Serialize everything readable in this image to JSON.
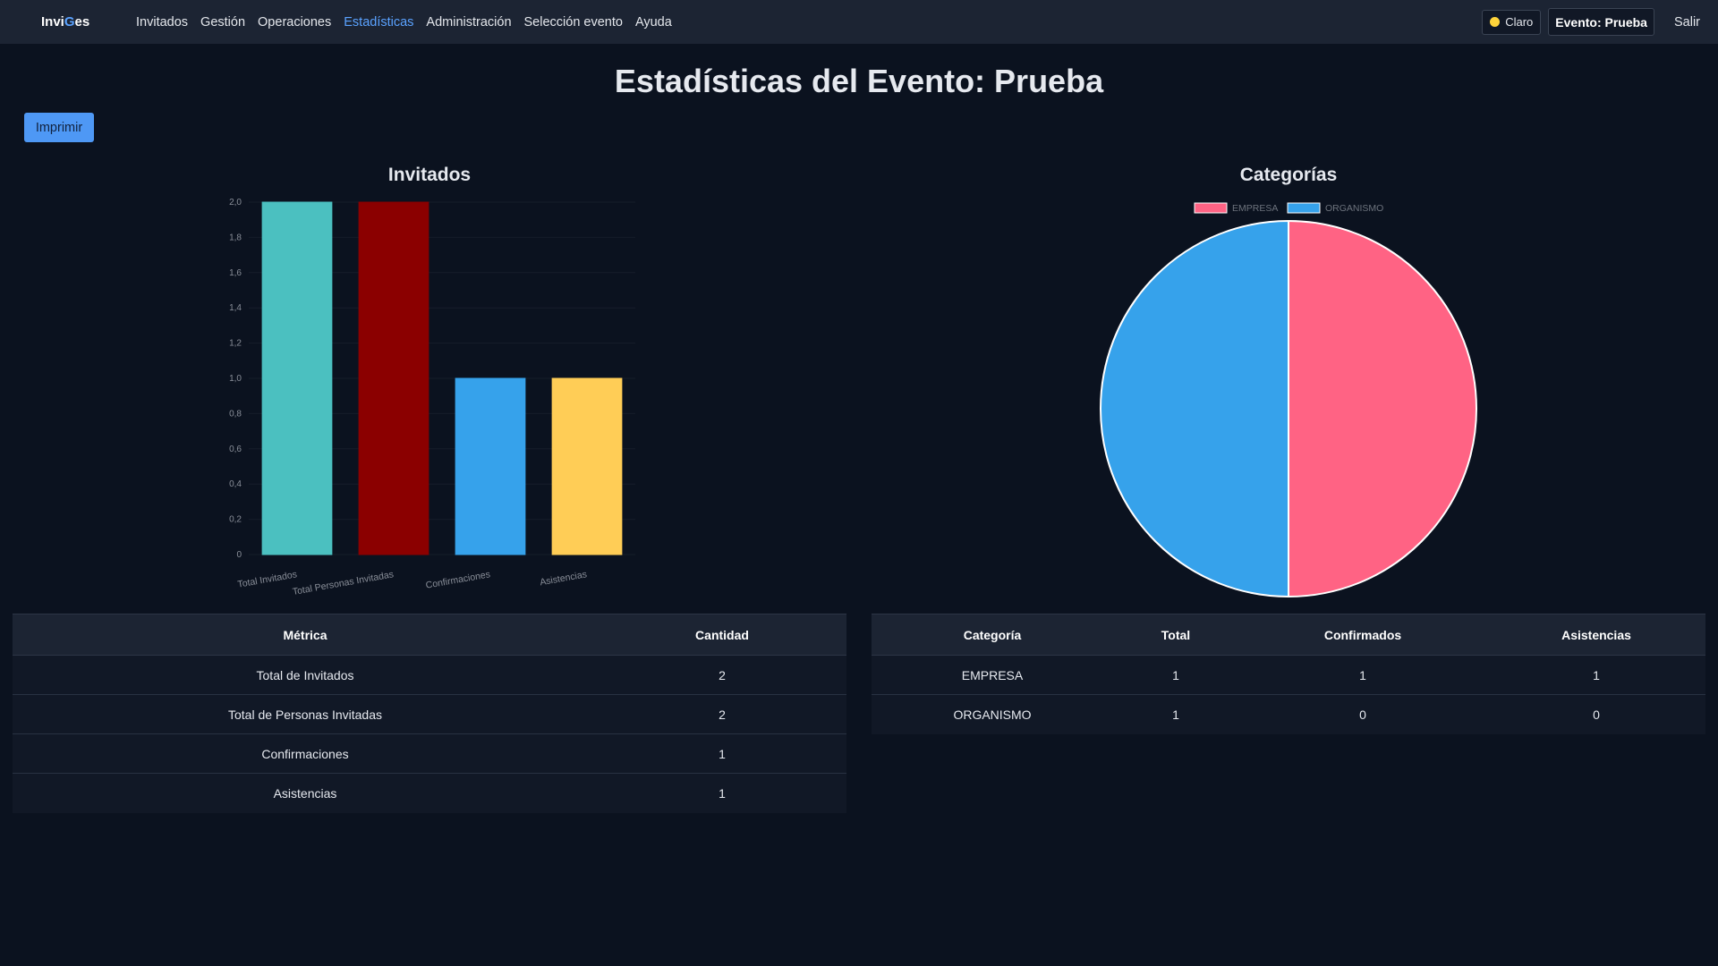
{
  "brand": {
    "part1": "Invi",
    "part2": "G",
    "part3": "es"
  },
  "nav": {
    "items": [
      {
        "label": "Invitados"
      },
      {
        "label": "Gestión"
      },
      {
        "label": "Operaciones"
      },
      {
        "label": "Estadísticas"
      },
      {
        "label": "Administración"
      },
      {
        "label": "Selección evento"
      },
      {
        "label": "Ayuda"
      }
    ],
    "active": "Estadísticas",
    "theme_label": "Claro",
    "event_label": "Evento: Prueba",
    "logout_label": "Salir"
  },
  "page": {
    "title": "Estadísticas del Evento: Prueba",
    "print_label": "Imprimir"
  },
  "colors": {
    "accent": "#5aa2ff",
    "bar1": "#4bc0c0",
    "bar2": "#8b0000",
    "bar3": "#36a2eb",
    "bar4": "#ffcd56",
    "empresa": "#ff6384",
    "organismo": "#36a2eb"
  },
  "chart_data": [
    {
      "type": "bar",
      "title": "Invitados",
      "categories": [
        "Total Invitados",
        "Total Personas Invitadas",
        "Confirmaciones",
        "Asistencias"
      ],
      "values": [
        2,
        2,
        1,
        1
      ],
      "ylim": [
        0,
        2
      ],
      "yticks": [
        "0",
        "0,2",
        "0,4",
        "0,6",
        "0,8",
        "1,0",
        "1,2",
        "1,4",
        "1,6",
        "1,8",
        "2,0"
      ],
      "grid": true
    },
    {
      "type": "pie",
      "title": "Categorías",
      "labels": [
        "EMPRESA",
        "ORGANISMO"
      ],
      "values": [
        1,
        1
      ],
      "legend": "top"
    }
  ],
  "metrics_table": {
    "headers": [
      "Métrica",
      "Cantidad"
    ],
    "rows": [
      [
        "Total de Invitados",
        "2"
      ],
      [
        "Total de Personas Invitadas",
        "2"
      ],
      [
        "Confirmaciones",
        "1"
      ],
      [
        "Asistencias",
        "1"
      ]
    ]
  },
  "categories_table": {
    "headers": [
      "Categoría",
      "Total",
      "Confirmados",
      "Asistencias"
    ],
    "rows": [
      [
        "EMPRESA",
        "1",
        "1",
        "1"
      ],
      [
        "ORGANISMO",
        "1",
        "0",
        "0"
      ]
    ]
  }
}
